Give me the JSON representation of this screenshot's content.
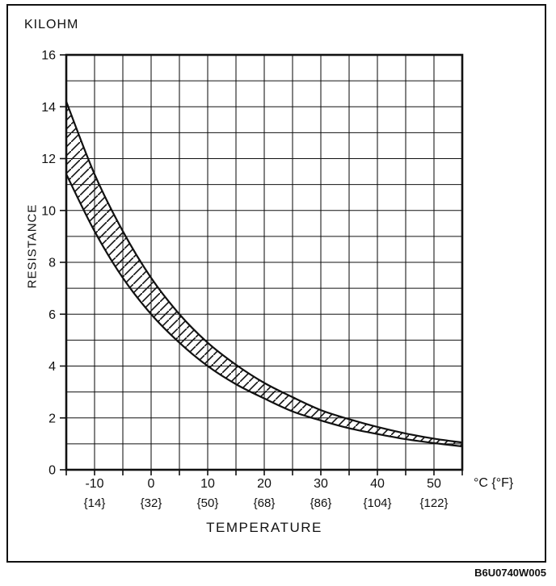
{
  "labels": {
    "unit": "KILOHM",
    "y_axis": "RESISTANCE",
    "x_axis": "TEMPERATURE",
    "x_unit": "°C {°F}",
    "ref_code": "B6U0740W005"
  },
  "colors": {
    "ink": "#111111",
    "background": "#ffffff"
  },
  "chart_data": {
    "type": "line",
    "xlabel": "TEMPERATURE",
    "ylabel": "RESISTANCE",
    "y_unit": "KILOHM",
    "x_unit": "°C {°F}",
    "xlim": [
      -15,
      55
    ],
    "ylim": [
      0,
      16
    ],
    "x_grid_step": 5,
    "y_grid_step": 1,
    "grid": true,
    "legend": "none",
    "x_ticks": [
      {
        "c": "-10",
        "f": "{14}"
      },
      {
        "c": "0",
        "f": "{32}"
      },
      {
        "c": "10",
        "f": "{50}"
      },
      {
        "c": "20",
        "f": "{68}"
      },
      {
        "c": "30",
        "f": "{86}"
      },
      {
        "c": "40",
        "f": "{104}"
      },
      {
        "c": "50",
        "f": "{122}"
      }
    ],
    "y_ticks": [
      0,
      2,
      4,
      6,
      8,
      10,
      12,
      14,
      16
    ],
    "x": [
      -15,
      -10,
      -5,
      0,
      5,
      10,
      15,
      20,
      25,
      30,
      35,
      40,
      45,
      50,
      55
    ],
    "series": [
      {
        "name": "upper-limit",
        "values": [
          14.2,
          11.4,
          9.2,
          7.4,
          6.0,
          4.9,
          4.05,
          3.35,
          2.8,
          2.3,
          1.95,
          1.65,
          1.4,
          1.2,
          1.05
        ]
      },
      {
        "name": "lower-limit",
        "values": [
          11.4,
          9.2,
          7.4,
          6.0,
          4.9,
          4.0,
          3.3,
          2.75,
          2.25,
          1.9,
          1.6,
          1.38,
          1.18,
          1.03,
          0.9
        ]
      }
    ],
    "band": {
      "hatched": true,
      "between": [
        "upper-limit",
        "lower-limit"
      ]
    }
  }
}
